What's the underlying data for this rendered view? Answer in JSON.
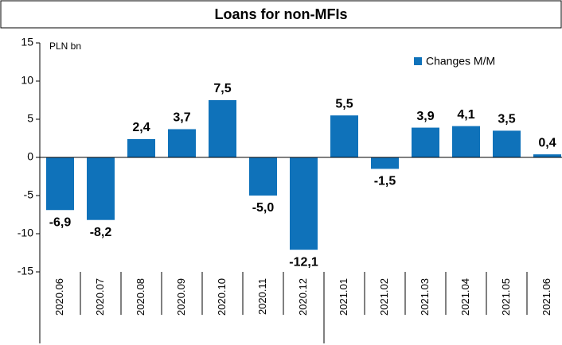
{
  "chart_data": {
    "type": "bar",
    "title": "Loans for non-MFIs",
    "unit_label": "PLN bn",
    "categories": [
      "2020.06",
      "2020.07",
      "2020.08",
      "2020.09",
      "2020.10",
      "2020.11",
      "2020.12",
      "2021.01",
      "2021.02",
      "2021.03",
      "2021.04",
      "2021.05",
      "2021.06"
    ],
    "series": [
      {
        "name": "Changes M/M",
        "color": "#0f72ba",
        "values": [
          -6.9,
          -8.2,
          2.4,
          3.7,
          7.5,
          -5.0,
          -12.1,
          5.5,
          -1.5,
          3.9,
          4.1,
          3.5,
          0.4
        ],
        "value_labels": [
          "-6,9",
          "-8,2",
          "2,4",
          "3,7",
          "7,5",
          "-5,0",
          "-12,1",
          "5,5",
          "-1,5",
          "3,9",
          "4,1",
          "3,5",
          "0,4"
        ]
      }
    ],
    "ylim": [
      -15,
      15
    ],
    "yticks": [
      -15,
      -10,
      -5,
      0,
      5,
      10,
      15
    ],
    "legend": "upper right"
  }
}
